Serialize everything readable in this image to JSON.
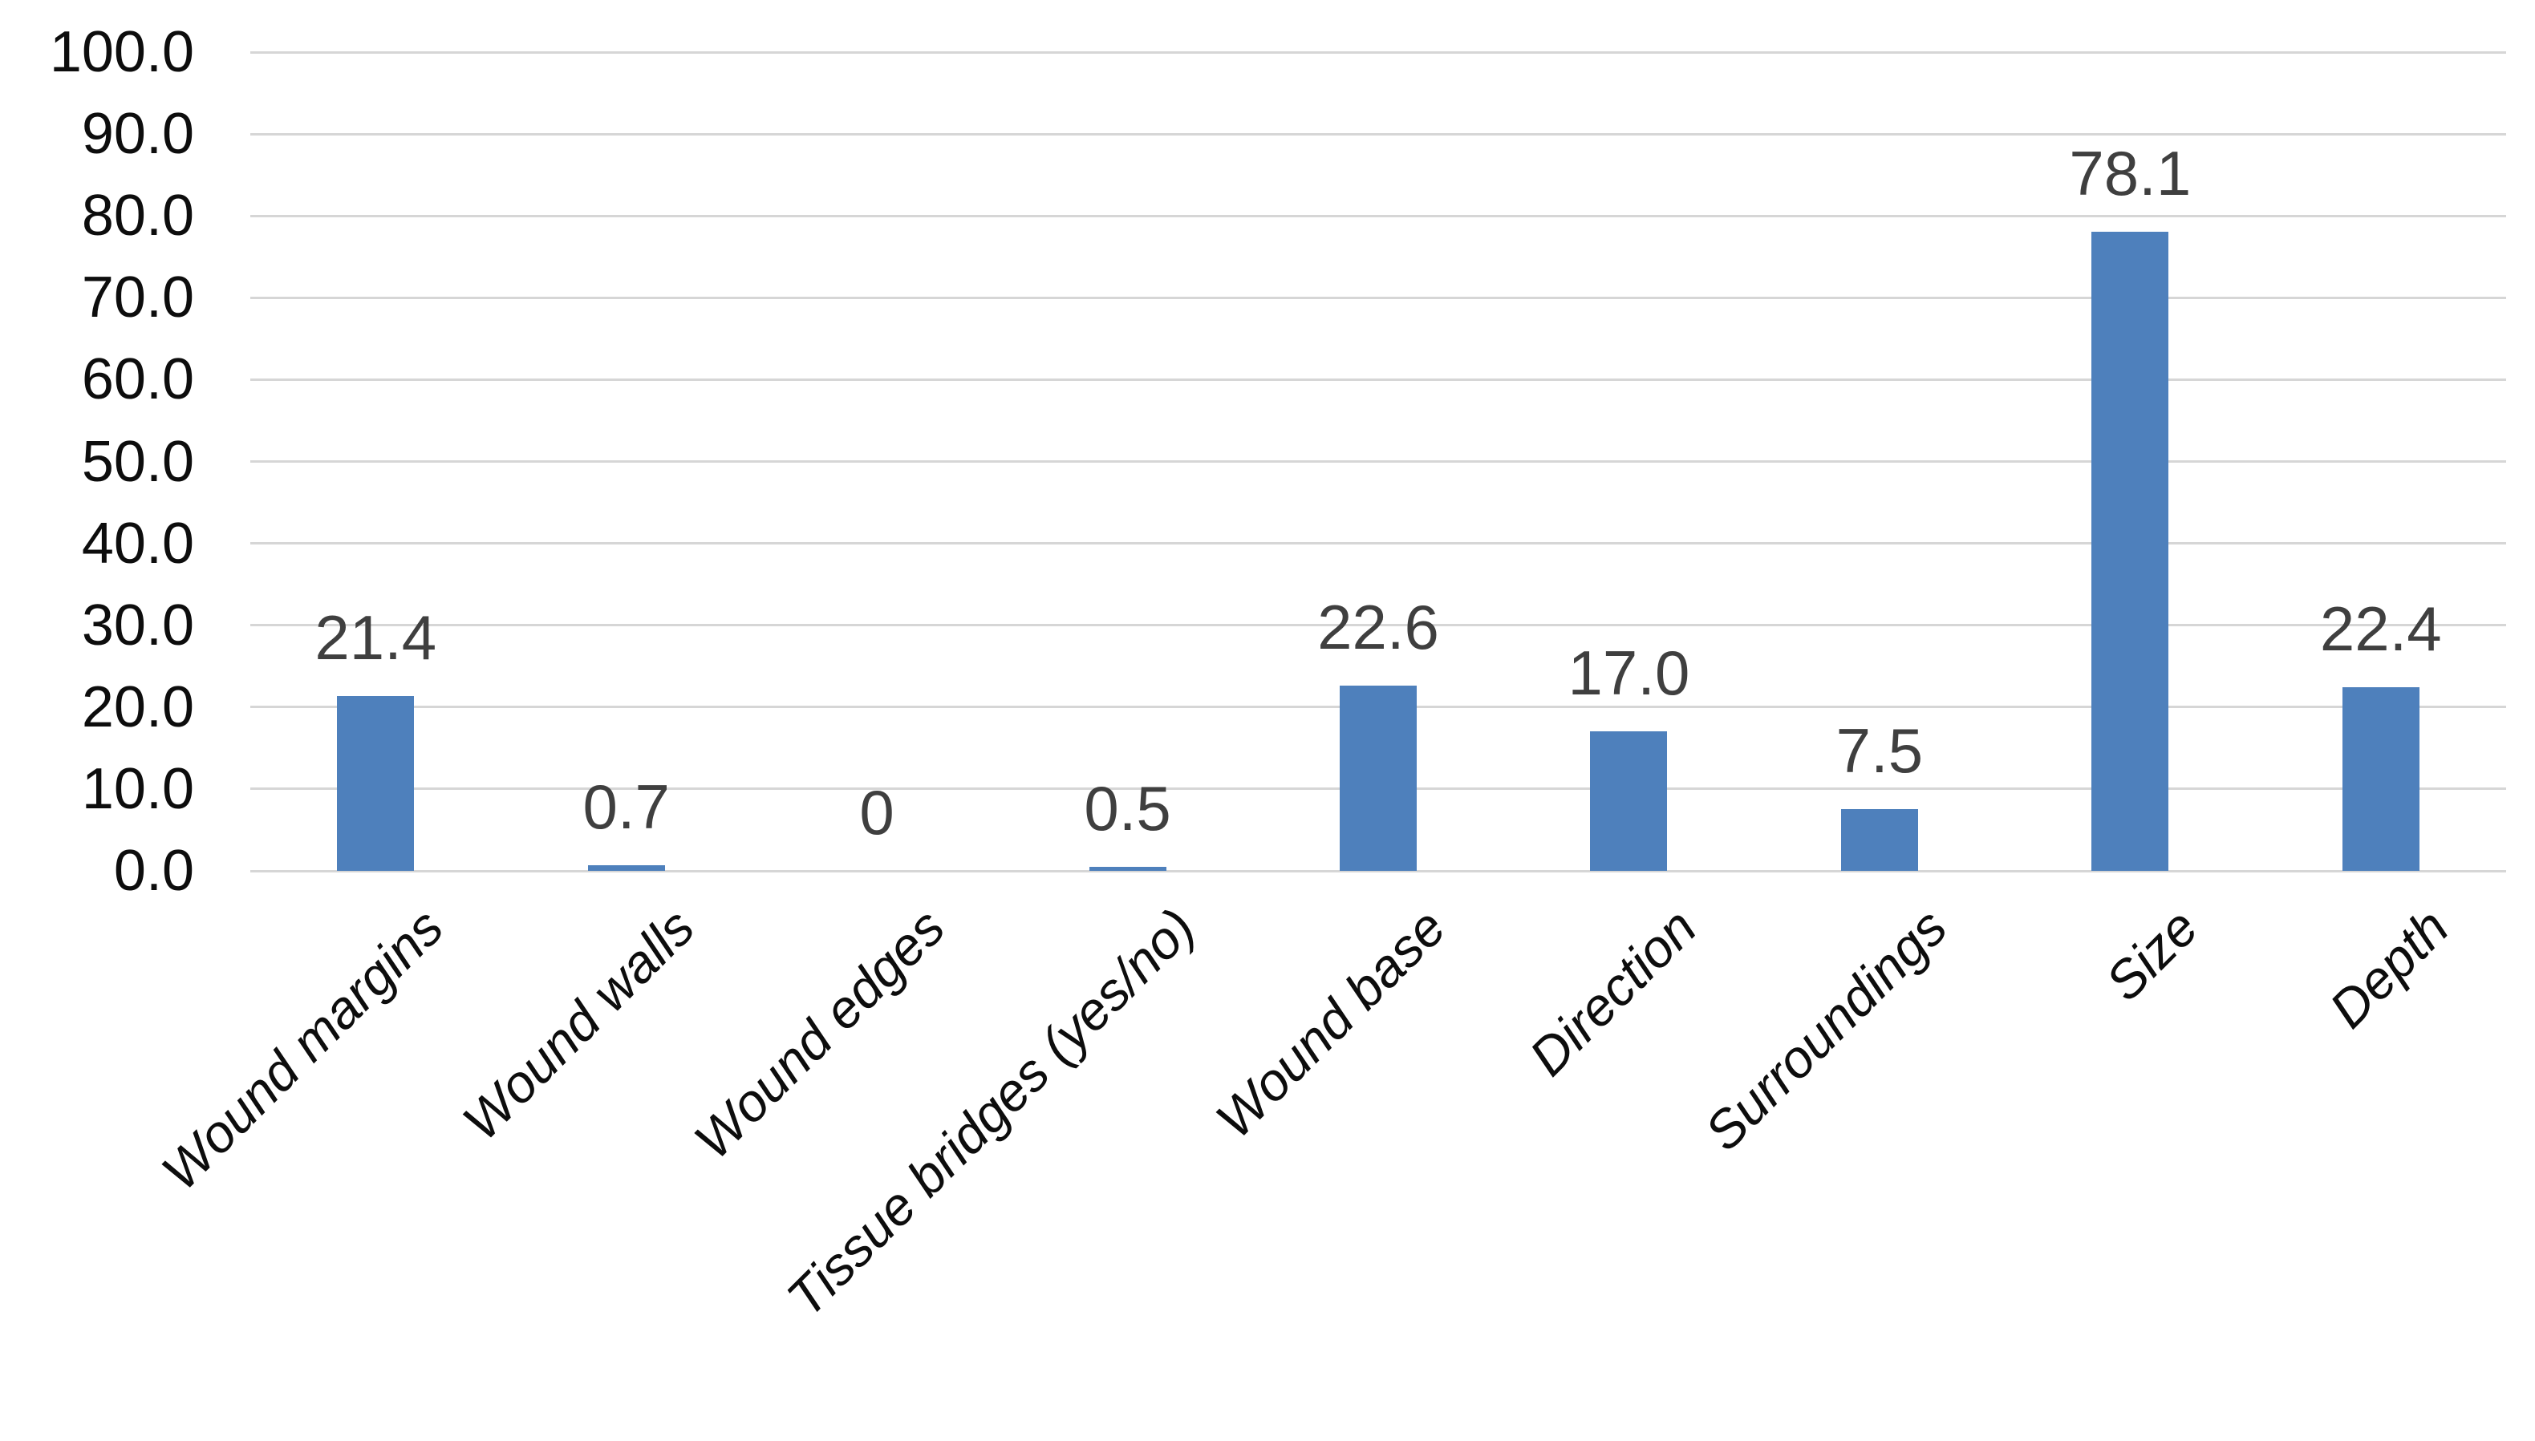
{
  "chart_data": {
    "type": "bar",
    "title": "",
    "xlabel": "",
    "ylabel": "",
    "categories": [
      "Wound margins",
      "Wound walls",
      "Wound edges",
      "Tissue bridges (yes/no)",
      "Wound base",
      "Direction",
      "Surroundings",
      "Size",
      "Depth"
    ],
    "values": [
      21.4,
      0.7,
      0,
      0.5,
      22.6,
      17.0,
      7.5,
      78.1,
      22.4
    ],
    "value_labels": [
      "21.4",
      "0.7",
      "0",
      "0.5",
      "22.6",
      "17.0",
      "7.5",
      "78.1",
      "22.4"
    ],
    "ylim": [
      0,
      100
    ],
    "ytick_step": 10,
    "ytick_labels": [
      "100.0",
      "90.0",
      "80.0",
      "70.0",
      "60.0",
      "50.0",
      "40.0",
      "30.0",
      "20.0",
      "10.0",
      "0.0"
    ],
    "grid": true,
    "legend": false,
    "x_labels_rotation_deg": -45,
    "x_labels_style": "italic",
    "colors": {
      "bar": "#4E80BC",
      "gridline": "#D6D6D6",
      "value_label": "#3F3F3F",
      "axis_label": "#0D0D0D",
      "category_label": "#0D0D0D",
      "background": "#FFFFFF"
    }
  }
}
